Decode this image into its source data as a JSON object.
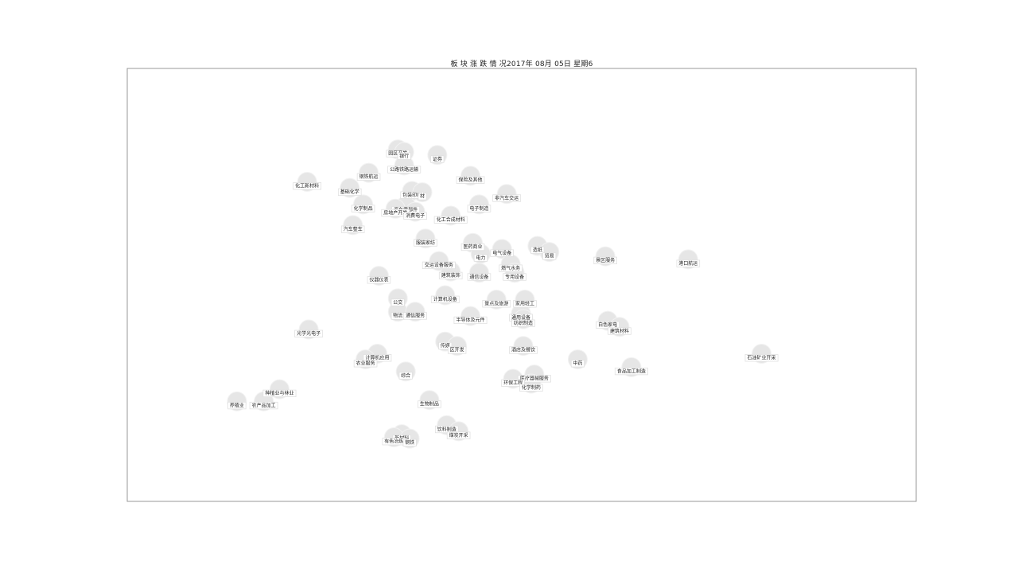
{
  "chart_data": {
    "type": "scatter",
    "title": "板 块 涨 跌 情 况2017年 08月 05日 星期6",
    "xlabel": "",
    "ylabel": "",
    "grid": false,
    "legend": "none",
    "colors": {
      "bubble": "#e6e6e6",
      "frame": "#999999",
      "label_bg": "#ffffff"
    },
    "xlim": [
      0,
      100
    ],
    "ylim": [
      0,
      100
    ],
    "points": [
      {
        "label": "园区开发",
        "x": 34.3,
        "y": 81.3
      },
      {
        "label": "银行",
        "x": 35.1,
        "y": 80.7
      },
      {
        "label": "证券",
        "x": 39.3,
        "y": 80.0
      },
      {
        "label": "公路铁路运输",
        "x": 35.1,
        "y": 77.6
      },
      {
        "label": "钢铁航运",
        "x": 30.6,
        "y": 75.9
      },
      {
        "label": "保险及其他",
        "x": 43.5,
        "y": 75.2
      },
      {
        "label": "化工新材料",
        "x": 22.8,
        "y": 73.8
      },
      {
        "label": "基础化学",
        "x": 28.2,
        "y": 72.4
      },
      {
        "label": "包装印刷",
        "x": 36.1,
        "y": 71.7
      },
      {
        "label": "材",
        "x": 37.4,
        "y": 71.4
      },
      {
        "label": "非汽车交运",
        "x": 48.1,
        "y": 71.0
      },
      {
        "label": "化学制品",
        "x": 29.9,
        "y": 68.6
      },
      {
        "label": "汽车零部件",
        "x": 35.3,
        "y": 68.3
      },
      {
        "label": "房地产开发",
        "x": 34.0,
        "y": 67.6
      },
      {
        "label": "电子制造",
        "x": 44.6,
        "y": 68.6
      },
      {
        "label": "消费电子",
        "x": 36.5,
        "y": 66.9
      },
      {
        "label": "化工合成材料",
        "x": 41.0,
        "y": 66.0
      },
      {
        "label": "汽车整车",
        "x": 28.6,
        "y": 63.8
      },
      {
        "label": "服装家纺",
        "x": 37.8,
        "y": 60.7
      },
      {
        "label": "医药商业",
        "x": 43.8,
        "y": 59.7
      },
      {
        "label": "造纸",
        "x": 52.0,
        "y": 59.0
      },
      {
        "label": "电气设备",
        "x": 47.5,
        "y": 58.3
      },
      {
        "label": "贸易",
        "x": 53.5,
        "y": 57.6
      },
      {
        "label": "电力",
        "x": 44.8,
        "y": 57.2
      },
      {
        "label": "景区服务",
        "x": 60.6,
        "y": 56.6
      },
      {
        "label": "港口航运",
        "x": 71.1,
        "y": 55.9
      },
      {
        "label": "交运设备服务",
        "x": 39.5,
        "y": 55.5
      },
      {
        "label": "燃气水务",
        "x": 48.6,
        "y": 54.8
      },
      {
        "label": "建筑装饰",
        "x": 41.0,
        "y": 53.1
      },
      {
        "label": "通信设备",
        "x": 44.6,
        "y": 52.8
      },
      {
        "label": "专用设备",
        "x": 49.1,
        "y": 52.8
      },
      {
        "label": "仪器仪表",
        "x": 31.9,
        "y": 52.1
      },
      {
        "label": "计算机设备",
        "x": 40.3,
        "y": 47.6
      },
      {
        "label": "公交",
        "x": 34.3,
        "y": 46.9
      },
      {
        "label": "景点及旅游",
        "x": 46.8,
        "y": 46.6
      },
      {
        "label": "家用轻工",
        "x": 50.4,
        "y": 46.6
      },
      {
        "label": "物流",
        "x": 34.3,
        "y": 43.8
      },
      {
        "label": "通信服务",
        "x": 36.5,
        "y": 43.8
      },
      {
        "label": "通用设备",
        "x": 49.9,
        "y": 43.4
      },
      {
        "label": "半导体及元件",
        "x": 43.5,
        "y": 42.8
      },
      {
        "label": "纺织制造",
        "x": 50.2,
        "y": 42.1
      },
      {
        "label": "白色家电",
        "x": 60.9,
        "y": 41.7
      },
      {
        "label": "建筑材料",
        "x": 62.4,
        "y": 40.3
      },
      {
        "label": "光学光电子",
        "x": 23.0,
        "y": 39.7
      },
      {
        "label": "传媒",
        "x": 40.3,
        "y": 36.9
      },
      {
        "label": "区开发",
        "x": 41.8,
        "y": 35.9
      },
      {
        "label": "酒店及餐饮",
        "x": 50.2,
        "y": 35.9
      },
      {
        "label": "计算机应用",
        "x": 31.7,
        "y": 34.1
      },
      {
        "label": "石油矿业开采",
        "x": 80.4,
        "y": 34.1
      },
      {
        "label": "中药",
        "x": 57.1,
        "y": 32.8
      },
      {
        "label": "农业服务",
        "x": 30.2,
        "y": 32.8
      },
      {
        "label": "食品加工制造",
        "x": 63.9,
        "y": 31.0
      },
      {
        "label": "综合",
        "x": 35.3,
        "y": 30.0
      },
      {
        "label": "医疗器械服务",
        "x": 51.6,
        "y": 29.3
      },
      {
        "label": "环保工程",
        "x": 48.9,
        "y": 28.3
      },
      {
        "label": "化学制药",
        "x": 51.2,
        "y": 27.2
      },
      {
        "label": "种植业与林业",
        "x": 19.3,
        "y": 25.9
      },
      {
        "label": "养殖业",
        "x": 13.9,
        "y": 23.1
      },
      {
        "label": "农产品加工",
        "x": 17.3,
        "y": 23.1
      },
      {
        "label": "生物制品",
        "x": 38.3,
        "y": 23.4
      },
      {
        "label": "饮料制造",
        "x": 40.5,
        "y": 17.6
      },
      {
        "label": "煤炭开采",
        "x": 42.0,
        "y": 16.2
      },
      {
        "label": "新材料",
        "x": 34.8,
        "y": 15.5
      },
      {
        "label": "有色冶炼",
        "x": 33.8,
        "y": 14.8
      },
      {
        "label": "钢铁",
        "x": 35.8,
        "y": 14.5
      }
    ]
  }
}
